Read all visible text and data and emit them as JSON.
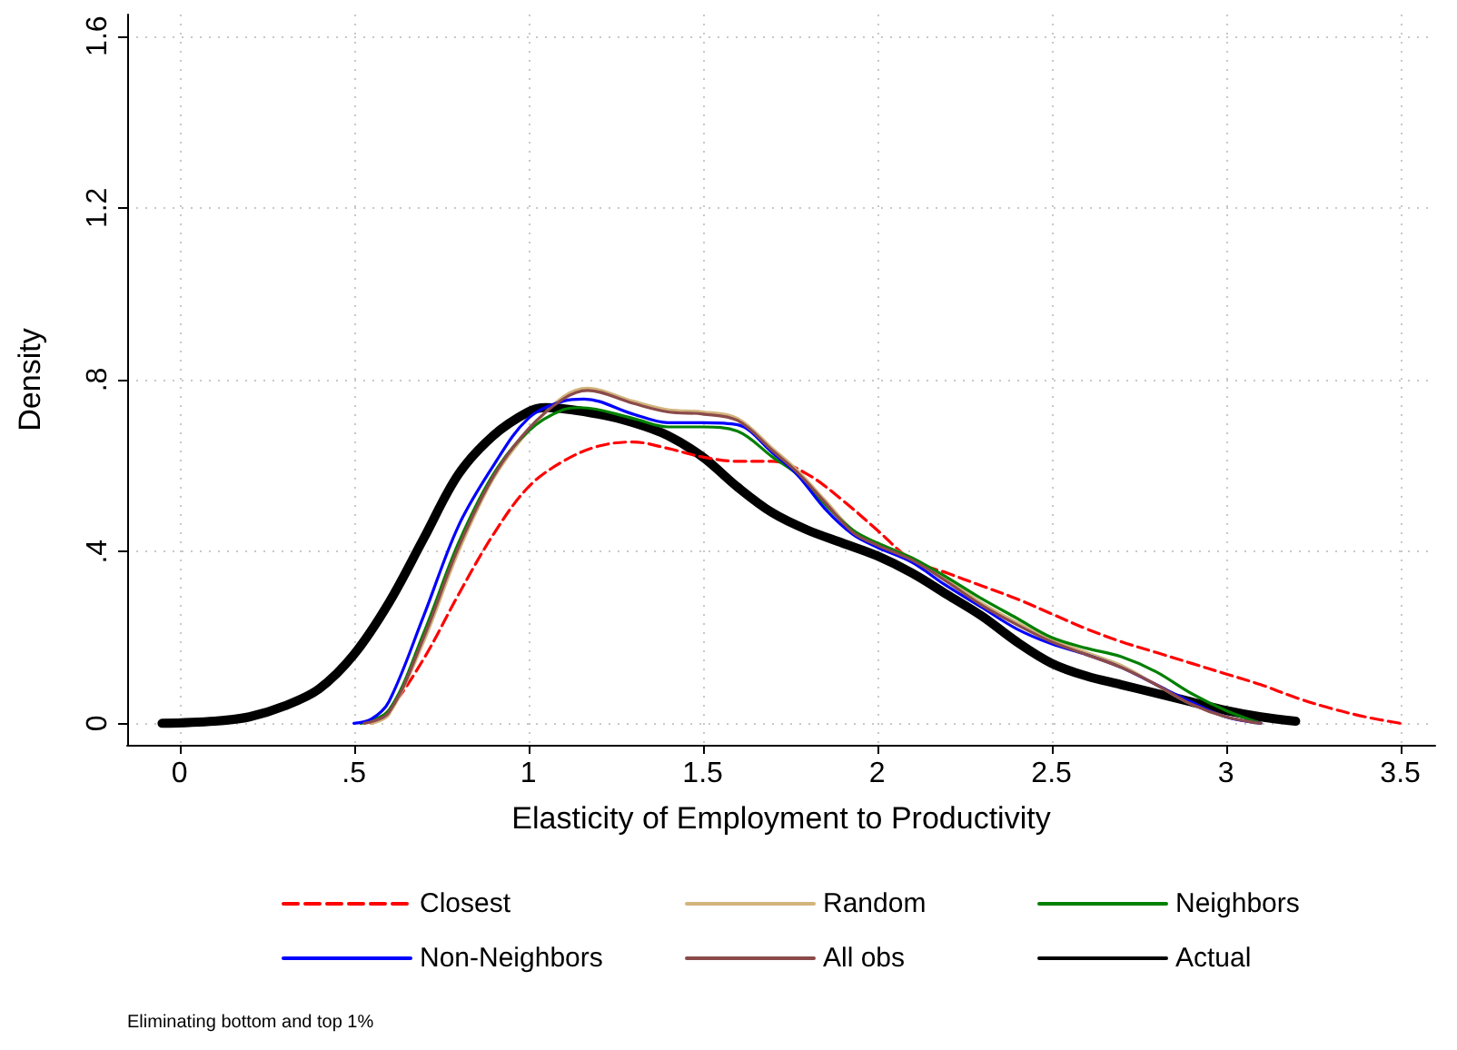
{
  "chart_data": {
    "type": "line",
    "xlabel": "Elasticity of Employment to Productivity",
    "ylabel": "Density",
    "xlim": [
      -0.15,
      3.6
    ],
    "ylim": [
      -0.05,
      1.65
    ],
    "xticks": [
      0,
      {
        "value": 0.5,
        "label": ".5"
      },
      1,
      1.5,
      2,
      2.5,
      3,
      3.5
    ],
    "yticks": [
      0,
      {
        "value": 0.4,
        "label": ".4"
      },
      {
        "value": 0.8,
        "label": ".8"
      },
      1.2,
      1.6
    ],
    "grid": true,
    "legend": "bottom",
    "marker": "none",
    "annotations": [
      "Eliminating bottom and top 1%"
    ],
    "series": [
      {
        "name": "Closest",
        "color": "#ff0000",
        "line_style": "dashed",
        "x": [
          0.55,
          0.6,
          0.7,
          0.8,
          0.9,
          1.0,
          1.1,
          1.2,
          1.3,
          1.4,
          1.5,
          1.6,
          1.7,
          1.8,
          1.9,
          2.0,
          2.1,
          2.2,
          2.3,
          2.4,
          2.5,
          2.6,
          2.7,
          2.8,
          2.9,
          3.0,
          3.1,
          3.2,
          3.3,
          3.4,
          3.5
        ],
        "values": [
          0,
          0.03,
          0.15,
          0.3,
          0.44,
          0.55,
          0.61,
          0.645,
          0.655,
          0.64,
          0.62,
          0.61,
          0.61,
          0.58,
          0.52,
          0.45,
          0.38,
          0.35,
          0.32,
          0.29,
          0.255,
          0.22,
          0.19,
          0.165,
          0.14,
          0.115,
          0.09,
          0.06,
          0.035,
          0.015,
          0
        ]
      },
      {
        "name": "Random",
        "color": "#d2b47c",
        "line_style": "solid",
        "x": [
          0.55,
          0.6,
          0.7,
          0.8,
          0.9,
          1.0,
          1.1,
          1.17,
          1.3,
          1.4,
          1.5,
          1.6,
          1.7,
          1.77,
          1.85,
          1.93,
          2.0,
          2.1,
          2.2,
          2.3,
          2.4,
          2.5,
          2.6,
          2.7,
          2.8,
          2.9,
          3.0,
          3.1
        ],
        "values": [
          0,
          0.02,
          0.19,
          0.4,
          0.57,
          0.68,
          0.76,
          0.78,
          0.75,
          0.73,
          0.725,
          0.71,
          0.64,
          0.59,
          0.52,
          0.45,
          0.42,
          0.385,
          0.335,
          0.28,
          0.235,
          0.195,
          0.165,
          0.135,
          0.09,
          0.045,
          0.015,
          0
        ]
      },
      {
        "name": "Neighbors",
        "color": "#008000",
        "line_style": "solid",
        "x": [
          0.52,
          0.6,
          0.7,
          0.8,
          0.9,
          1.0,
          1.1,
          1.15,
          1.3,
          1.4,
          1.5,
          1.6,
          1.7,
          1.77,
          1.85,
          1.93,
          2.0,
          2.1,
          2.2,
          2.3,
          2.4,
          2.5,
          2.6,
          2.7,
          2.8,
          2.9,
          3.0,
          3.1
        ],
        "values": [
          0,
          0.03,
          0.21,
          0.42,
          0.58,
          0.68,
          0.73,
          0.735,
          0.71,
          0.69,
          0.69,
          0.68,
          0.62,
          0.58,
          0.51,
          0.45,
          0.42,
          0.385,
          0.34,
          0.29,
          0.245,
          0.2,
          0.175,
          0.155,
          0.12,
          0.07,
          0.03,
          0
        ]
      },
      {
        "name": "Non-Neighbors",
        "color": "#0000ff",
        "line_style": "solid",
        "x": [
          0.5,
          0.55,
          0.6,
          0.7,
          0.8,
          0.9,
          1.0,
          1.1,
          1.16,
          1.3,
          1.4,
          1.5,
          1.6,
          1.7,
          1.77,
          1.85,
          1.93,
          2.0,
          2.1,
          2.19,
          2.3,
          2.4,
          2.5,
          2.6,
          2.7,
          2.8,
          2.9,
          3.0,
          3.1
        ],
        "values": [
          0,
          0.01,
          0.05,
          0.25,
          0.46,
          0.6,
          0.71,
          0.75,
          0.755,
          0.72,
          0.7,
          0.7,
          0.695,
          0.63,
          0.58,
          0.5,
          0.44,
          0.41,
          0.375,
          0.325,
          0.27,
          0.22,
          0.185,
          0.16,
          0.13,
          0.09,
          0.05,
          0.015,
          0
        ]
      },
      {
        "name": "All obs",
        "color": "#8b4a4a",
        "line_style": "solid",
        "x": [
          0.53,
          0.6,
          0.7,
          0.8,
          0.9,
          1.0,
          1.1,
          1.17,
          1.3,
          1.4,
          1.5,
          1.6,
          1.7,
          1.77,
          1.85,
          1.93,
          2.0,
          2.1,
          2.2,
          2.3,
          2.4,
          2.5,
          2.6,
          2.7,
          2.8,
          2.9,
          3.0,
          3.1
        ],
        "values": [
          0,
          0.025,
          0.2,
          0.41,
          0.575,
          0.685,
          0.755,
          0.775,
          0.745,
          0.725,
          0.72,
          0.705,
          0.635,
          0.585,
          0.515,
          0.445,
          0.415,
          0.38,
          0.33,
          0.275,
          0.23,
          0.19,
          0.16,
          0.13,
          0.09,
          0.045,
          0.015,
          0
        ]
      },
      {
        "name": "Actual",
        "color": "#000000",
        "line_style": "solid",
        "x": [
          -0.05,
          0.1,
          0.2,
          0.3,
          0.4,
          0.5,
          0.6,
          0.7,
          0.8,
          0.9,
          1.0,
          1.05,
          1.2,
          1.3,
          1.4,
          1.5,
          1.6,
          1.7,
          1.8,
          1.9,
          2.0,
          2.1,
          2.2,
          2.3,
          2.4,
          2.5,
          2.6,
          2.7,
          2.8,
          2.9,
          3.0,
          3.1,
          3.2
        ],
        "values": [
          0,
          0.005,
          0.015,
          0.04,
          0.08,
          0.16,
          0.28,
          0.43,
          0.58,
          0.67,
          0.725,
          0.735,
          0.72,
          0.7,
          0.67,
          0.62,
          0.55,
          0.49,
          0.45,
          0.42,
          0.39,
          0.35,
          0.3,
          0.25,
          0.19,
          0.14,
          0.11,
          0.09,
          0.07,
          0.05,
          0.03,
          0.015,
          0.005
        ]
      }
    ]
  }
}
